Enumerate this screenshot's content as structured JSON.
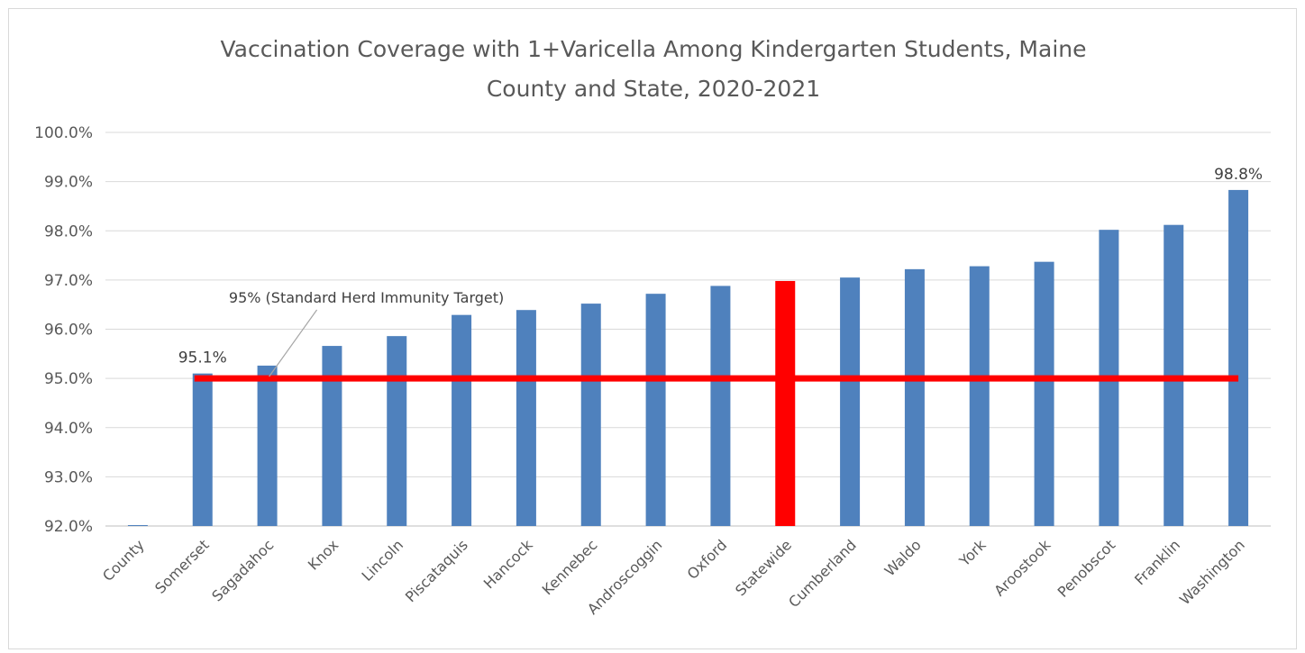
{
  "chart_data": {
    "type": "bar",
    "title_lines": [
      "Vaccination Coverage with 1+Varicella Among Kindergarten Students, Maine",
      "County and State, 2020-2021"
    ],
    "xlabel": "",
    "ylabel": "",
    "ylim": [
      0.92,
      1.0
    ],
    "yticks": [
      0.92,
      0.93,
      0.94,
      0.95,
      0.96,
      0.97,
      0.98,
      0.99,
      1.0
    ],
    "ytick_labels": [
      "92.0%",
      "93.0%",
      "94.0%",
      "95.0%",
      "96.0%",
      "97.0%",
      "98.0%",
      "99.0%",
      "100.0%"
    ],
    "grid": true,
    "categories": [
      "County",
      "Somerset",
      "Sagadahoc",
      "Knox",
      "Lincoln",
      "Piscataquis",
      "Hancock",
      "Kennebec",
      "Androscoggin",
      "Oxford",
      "Statewide",
      "Cumberland",
      "Waldo",
      "York",
      "Aroostook",
      "Penobscot",
      "Franklin",
      "Washington"
    ],
    "values": [
      0.92,
      0.951,
      0.9526,
      0.9566,
      0.9586,
      0.9629,
      0.9639,
      0.9652,
      0.9672,
      0.9688,
      0.9698,
      0.9705,
      0.9722,
      0.9728,
      0.9737,
      0.9802,
      0.9812,
      0.9883
    ],
    "bar_color": "#4f81bd",
    "highlight_category": "Statewide",
    "highlight_color": "#ff0000",
    "data_labels": [
      {
        "category": "Somerset",
        "text": "95.1%"
      },
      {
        "category": "Washington",
        "text": "98.8%"
      }
    ],
    "reference_line": {
      "value": 0.95,
      "color": "#ff0000",
      "label": "95% (Standard Herd Immunity Target)"
    }
  }
}
